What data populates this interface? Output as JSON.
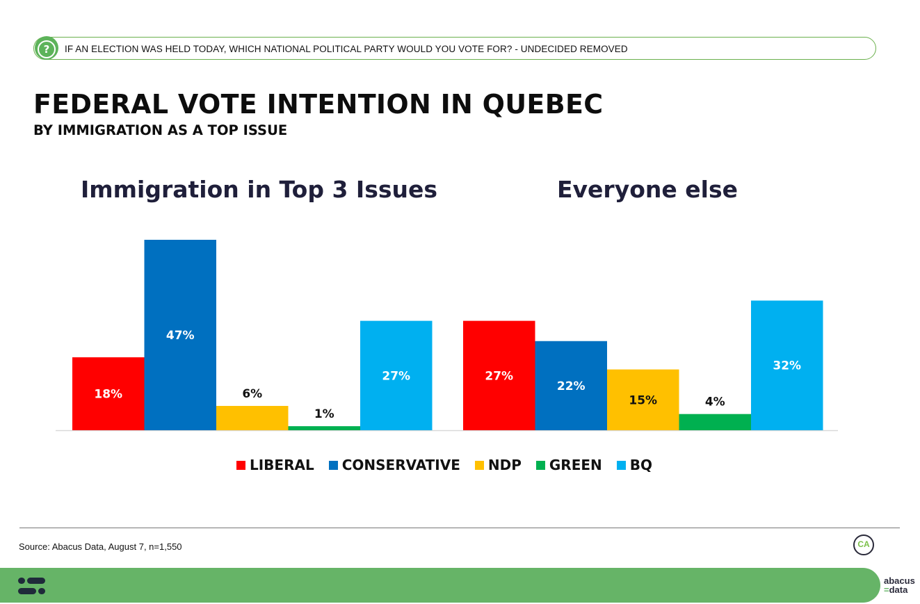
{
  "question": "IF AN ELECTION WAS HELD TODAY, WHICH NATIONAL POLITICAL PARTY WOULD YOU VOTE FOR? - UNDECIDED REMOVED",
  "title": "FEDERAL VOTE INTENTION IN QUEBEC",
  "subtitle": "BY IMMIGRATION AS A TOP ISSUE",
  "source": "Source: Abacus Data, August 7, n=1,550",
  "logo_text": "CA",
  "brand": {
    "line1": "abacus",
    "line2": "data"
  },
  "colors": {
    "liberal": "#ff0000",
    "conservative": "#0070c0",
    "ndp": "#ffc000",
    "green": "#00b050",
    "bq": "#00b0f0"
  },
  "chart_data": {
    "type": "bar",
    "categories": [
      "LIBERAL",
      "CONSERVATIVE",
      "NDP",
      "GREEN",
      "BQ"
    ],
    "ylim": [
      0,
      50
    ],
    "groups": [
      {
        "name": "Immigration in Top 3 Issues",
        "values": [
          18,
          47,
          6,
          1,
          27
        ],
        "labels": [
          "18%",
          "47%",
          "6%",
          "1%",
          "27%"
        ]
      },
      {
        "name": "Everyone else",
        "values": [
          27,
          22,
          15,
          4,
          32
        ],
        "labels": [
          "27%",
          "22%",
          "15%",
          "4%",
          "32%"
        ]
      }
    ],
    "legend": [
      "LIBERAL",
      "CONSERVATIVE",
      "NDP",
      "GREEN",
      "BQ"
    ]
  }
}
